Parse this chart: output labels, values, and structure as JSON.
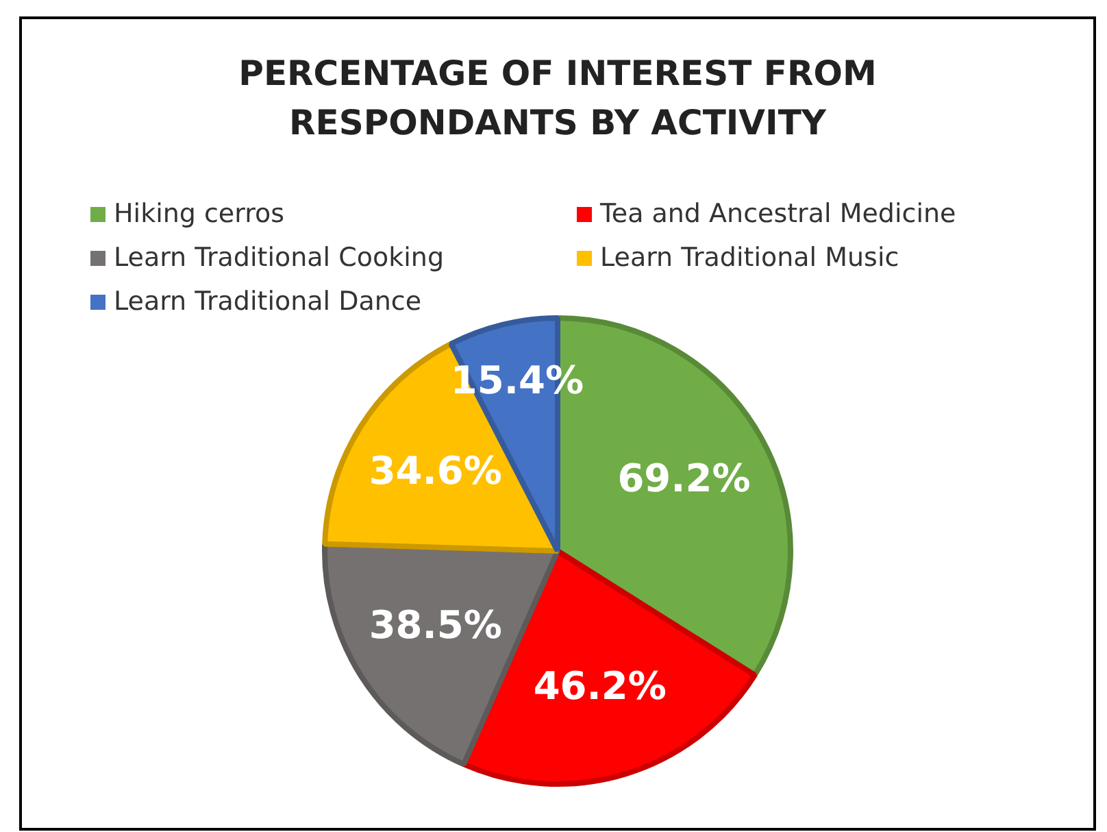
{
  "chart_data": {
    "type": "pie",
    "title": "PERCENTAGE OF INTEREST FROM RESPONDANTS BY ACTIVITY",
    "categories": [
      "Hiking cerros",
      "Tea and Ancestral Medicine",
      "Learn Traditional Cooking",
      "Learn Traditional Music",
      "Learn Traditional Dance"
    ],
    "values": [
      69.2,
      46.2,
      38.5,
      34.6,
      15.4
    ],
    "colors": [
      "#70ad47",
      "#ff0000",
      "#767171",
      "#ffc000",
      "#4472c4"
    ],
    "value_labels": [
      "69.2%",
      "46.2%",
      "38.5%",
      "34.6%",
      "15.4%"
    ],
    "legend": "top"
  }
}
